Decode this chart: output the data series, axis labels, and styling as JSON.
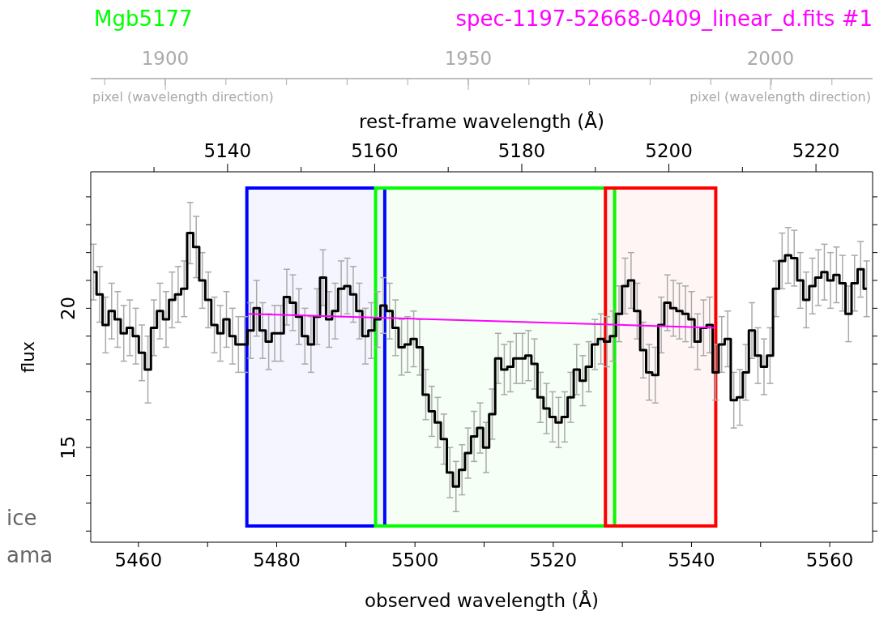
{
  "chart_data": {
    "type": "step",
    "title": "Mgb5177",
    "subtitle": "spec-1197-52668-0409_linear_d.fits #1",
    "xlabel": "observed wavelength (Å)",
    "ylabel": "flux",
    "x2label": "rest-frame wavelength (Å)",
    "xlim": [
      5453.1,
      5566.2
    ],
    "xticks": [
      5460,
      {
        "value": 5470,
        "label": null
      },
      5480,
      {
        "value": 5490,
        "label": null
      },
      5500,
      {
        "value": 5510,
        "label": null
      },
      5520,
      {
        "value": 5530,
        "label": null
      },
      5540,
      {
        "value": 5550,
        "label": null
      },
      5560
    ],
    "x2lim": [
      5121.4,
      5227.7
    ],
    "x2ticks": [
      {
        "value": 5130,
        "label": null
      },
      5140,
      {
        "value": 5150,
        "label": null
      },
      5160,
      {
        "value": 5170,
        "label": null
      },
      5180,
      {
        "value": 5190,
        "label": null
      },
      5200,
      {
        "value": 5210,
        "label": null
      },
      5220
    ],
    "ylim": [
      11.6,
      24.9
    ],
    "yticks": [
      {
        "value": 12,
        "label": null
      },
      {
        "value": 13,
        "label": null
      },
      {
        "value": 14,
        "label": null
      },
      15,
      {
        "value": 16,
        "label": null
      },
      {
        "value": 17,
        "label": null
      },
      {
        "value": 18,
        "label": null
      },
      {
        "value": 19,
        "label": null
      },
      20,
      {
        "value": 21,
        "label": null
      },
      {
        "value": 22,
        "label": null
      },
      {
        "value": 23,
        "label": null
      },
      {
        "value": 24,
        "label": null
      }
    ],
    "grid": false,
    "legend": false,
    "marker": "none",
    "line_style": "solid",
    "bands": [
      {
        "axis": "x2",
        "from": 5142.625,
        "to": 5161.375,
        "color": "#0000ff"
      },
      {
        "axis": "x2",
        "from": 5160.125,
        "to": 5192.625,
        "color": "#00ff00"
      },
      {
        "axis": "x2",
        "from": 5191.375,
        "to": 5206.375,
        "color": "#ff0000"
      }
    ],
    "annotations": [
      "ice",
      "ama",
      "1900",
      "1950",
      "2000",
      "pixel (wavelength direction)",
      "pixel (wavelength direction)"
    ],
    "series": [
      {
        "color": "#000000",
        "x": [
          5453.5,
          5454.38,
          5455.25,
          5456.12,
          5457.0,
          5457.87,
          5458.75,
          5459.62,
          5460.49,
          5461.37,
          5462.24,
          5463.11,
          5463.99,
          5464.86,
          5465.74,
          5466.61,
          5467.48,
          5468.36,
          5469.23,
          5470.1,
          5470.98,
          5471.85,
          5472.73,
          5473.6,
          5474.47,
          5475.35,
          5476.22,
          5477.09,
          5477.97,
          5478.84,
          5479.71,
          5480.59,
          5481.46,
          5482.34,
          5483.21,
          5484.08,
          5484.96,
          5485.83,
          5486.7,
          5487.58,
          5488.45,
          5489.33,
          5490.2,
          5491.07,
          5491.95,
          5492.82,
          5493.69,
          5494.57,
          5495.44,
          5496.32,
          5497.19,
          5498.06,
          5498.94,
          5499.81,
          5500.68,
          5501.56,
          5502.43,
          5503.3,
          5504.18,
          5505.05,
          5505.93,
          5506.8,
          5507.67,
          5508.55,
          5509.42,
          5510.29,
          5511.17,
          5512.04,
          5512.92,
          5513.79,
          5514.66,
          5515.54,
          5516.41,
          5517.28,
          5518.16,
          5519.03,
          5519.9,
          5520.78,
          5521.65,
          5522.53,
          5523.4,
          5524.27,
          5525.15,
          5526.02,
          5526.89,
          5527.77,
          5528.64,
          5529.52,
          5530.39,
          5531.26,
          5532.14,
          5533.01,
          5533.88,
          5534.76,
          5535.63,
          5536.51,
          5537.38,
          5538.25,
          5539.13,
          5540.0,
          5540.87,
          5541.75,
          5542.62,
          5543.5,
          5544.37,
          5545.24,
          5546.12,
          5546.99,
          5547.86,
          5548.74,
          5549.61,
          5550.49,
          5551.36,
          5552.23,
          5553.11,
          5553.98,
          5554.86,
          5555.73,
          5556.6,
          5557.48,
          5558.35,
          5559.22,
          5560.1,
          5560.97,
          5561.84,
          5562.72,
          5563.59,
          5564.47,
          5565.34
        ],
        "values": [
          21.3,
          20.5,
          19.4,
          19.9,
          19.6,
          19.1,
          19.3,
          19.0,
          18.4,
          17.8,
          19.3,
          19.9,
          19.6,
          20.3,
          20.5,
          20.7,
          22.7,
          22.2,
          21.0,
          20.3,
          19.4,
          19.1,
          19.6,
          19.0,
          18.7,
          18.7,
          19.2,
          20.0,
          19.2,
          18.8,
          19.1,
          19.1,
          20.4,
          20.2,
          19.7,
          19.0,
          18.7,
          19.7,
          21.1,
          19.6,
          19.9,
          20.7,
          20.8,
          20.5,
          19.9,
          19.0,
          19.2,
          19.6,
          20.1,
          19.9,
          19.3,
          18.6,
          18.7,
          18.9,
          18.6,
          16.9,
          16.3,
          15.9,
          15.3,
          14.1,
          13.6,
          14.2,
          14.8,
          15.4,
          15.7,
          15.0,
          16.2,
          18.2,
          17.8,
          17.9,
          18.2,
          18.2,
          18.3,
          18.0,
          16.8,
          16.4,
          16.1,
          15.9,
          16.1,
          16.8,
          17.8,
          17.4,
          17.9,
          18.7,
          18.9,
          18.8,
          19.0,
          19.8,
          20.8,
          21.0,
          19.9,
          18.5,
          17.7,
          17.6,
          19.4,
          20.2,
          20.0,
          19.9,
          19.8,
          19.6,
          18.8,
          19.3,
          19.4,
          17.7,
          18.7,
          18.9,
          16.7,
          16.8,
          17.7,
          19.2,
          18.3,
          17.9,
          18.3,
          20.7,
          21.7,
          21.9,
          21.8,
          21.0,
          20.3,
          20.8,
          21.1,
          21.3,
          21.0,
          21.2,
          20.9,
          19.8,
          20.9,
          21.4,
          20.7
        ],
        "errors": [
          1.0,
          1.0,
          1.0,
          1.0,
          1.0,
          1.0,
          1.0,
          1.0,
          1.0,
          1.2,
          1.0,
          1.0,
          1.0,
          1.0,
          1.0,
          1.0,
          1.1,
          1.1,
          1.0,
          1.0,
          1.0,
          1.0,
          1.0,
          1.0,
          1.0,
          1.0,
          1.0,
          1.0,
          1.0,
          1.0,
          1.0,
          1.0,
          1.0,
          1.0,
          1.0,
          1.0,
          1.0,
          1.0,
          1.0,
          1.0,
          1.0,
          1.0,
          1.0,
          1.0,
          1.0,
          1.0,
          1.0,
          1.0,
          1.0,
          1.0,
          1.0,
          1.0,
          1.0,
          1.0,
          1.0,
          0.9,
          0.9,
          0.9,
          0.9,
          0.9,
          0.9,
          0.9,
          0.9,
          0.9,
          0.9,
          0.9,
          0.9,
          0.9,
          0.9,
          0.9,
          0.9,
          0.9,
          0.9,
          0.9,
          0.9,
          0.9,
          0.9,
          0.9,
          0.9,
          0.9,
          0.9,
          0.9,
          0.9,
          0.9,
          0.9,
          0.9,
          0.9,
          1.0,
          1.0,
          1.0,
          1.0,
          1.0,
          1.0,
          1.0,
          1.0,
          1.0,
          1.0,
          1.0,
          1.0,
          1.0,
          1.0,
          1.0,
          1.0,
          1.0,
          1.0,
          1.0,
          1.0,
          1.0,
          1.0,
          1.0,
          1.0,
          1.0,
          1.0,
          1.0,
          1.0,
          1.0,
          1.0,
          1.0,
          1.0,
          1.0,
          1.0,
          1.0,
          1.0,
          1.0,
          1.0,
          1.0,
          1.0,
          1.0,
          1.0
        ]
      },
      {
        "type": "line",
        "color": "#ff00ff",
        "x": [
          5475.9,
          5543.5
        ],
        "values": [
          19.8,
          19.3
        ]
      }
    ]
  }
}
